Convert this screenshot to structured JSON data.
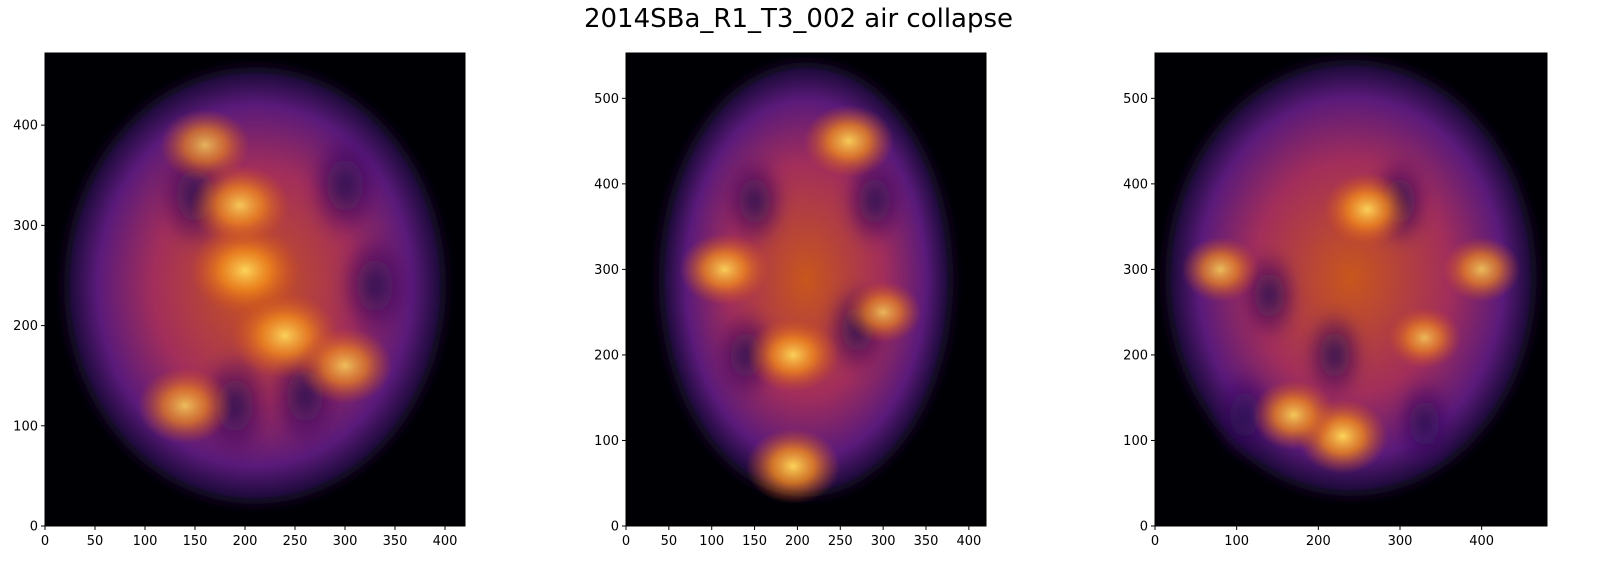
{
  "figure": {
    "title": "2014SBa_R1_T3_002 air collapse",
    "colormap": "inferno",
    "background": "#000004"
  },
  "chart_data": [
    {
      "type": "heatmap",
      "title": "",
      "colormap": "inferno",
      "xlim": [
        0,
        420
      ],
      "ylim": [
        0,
        472
      ],
      "xticks": [
        0,
        50,
        100,
        150,
        200,
        250,
        300,
        350,
        400
      ],
      "yticks": [
        0,
        100,
        200,
        300,
        400
      ],
      "shape": {
        "center": [
          210,
          240
        ],
        "radii": [
          185,
          212
        ]
      },
      "hotspots": [
        {
          "x": 200,
          "y": 255,
          "intensity": 1.0
        },
        {
          "x": 240,
          "y": 190,
          "intensity": 0.95
        },
        {
          "x": 195,
          "y": 320,
          "intensity": 0.8
        },
        {
          "x": 140,
          "y": 120,
          "intensity": 0.7
        },
        {
          "x": 300,
          "y": 160,
          "intensity": 0.7
        },
        {
          "x": 160,
          "y": 380,
          "intensity": 0.6
        }
      ],
      "voids": [
        {
          "x": 150,
          "y": 330
        },
        {
          "x": 300,
          "y": 340
        },
        {
          "x": 260,
          "y": 130
        },
        {
          "x": 190,
          "y": 120
        },
        {
          "x": 330,
          "y": 240
        }
      ]
    },
    {
      "type": "heatmap",
      "title": "",
      "colormap": "inferno",
      "xlim": [
        0,
        420
      ],
      "ylim": [
        0,
        553
      ],
      "xticks": [
        0,
        50,
        100,
        150,
        200,
        250,
        300,
        350,
        400
      ],
      "yticks": [
        0,
        100,
        200,
        300,
        400,
        500
      ],
      "shape": {
        "center": [
          210,
          288
        ],
        "radii": [
          165,
          247
        ]
      },
      "hotspots": [
        {
          "x": 195,
          "y": 70,
          "intensity": 1.0
        },
        {
          "x": 195,
          "y": 200,
          "intensity": 0.95
        },
        {
          "x": 115,
          "y": 300,
          "intensity": 0.9
        },
        {
          "x": 260,
          "y": 450,
          "intensity": 0.9
        },
        {
          "x": 300,
          "y": 250,
          "intensity": 0.6
        }
      ],
      "voids": [
        {
          "x": 270,
          "y": 230
        },
        {
          "x": 150,
          "y": 380
        },
        {
          "x": 290,
          "y": 380
        },
        {
          "x": 140,
          "y": 200
        }
      ]
    },
    {
      "type": "heatmap",
      "title": "",
      "colormap": "inferno",
      "xlim": [
        0,
        480
      ],
      "ylim": [
        0,
        553
      ],
      "xticks": [
        0,
        100,
        200,
        300,
        400
      ],
      "yticks": [
        0,
        100,
        200,
        300,
        400,
        500
      ],
      "shape": {
        "center": [
          240,
          290
        ],
        "radii": [
          220,
          248
        ]
      },
      "hotspots": [
        {
          "x": 230,
          "y": 105,
          "intensity": 1.0
        },
        {
          "x": 260,
          "y": 370,
          "intensity": 0.95
        },
        {
          "x": 170,
          "y": 130,
          "intensity": 0.85
        },
        {
          "x": 80,
          "y": 300,
          "intensity": 0.7
        },
        {
          "x": 400,
          "y": 300,
          "intensity": 0.7
        },
        {
          "x": 330,
          "y": 220,
          "intensity": 0.6
        }
      ],
      "voids": [
        {
          "x": 300,
          "y": 380
        },
        {
          "x": 140,
          "y": 270
        },
        {
          "x": 330,
          "y": 120
        },
        {
          "x": 110,
          "y": 130
        },
        {
          "x": 220,
          "y": 200
        }
      ]
    }
  ]
}
